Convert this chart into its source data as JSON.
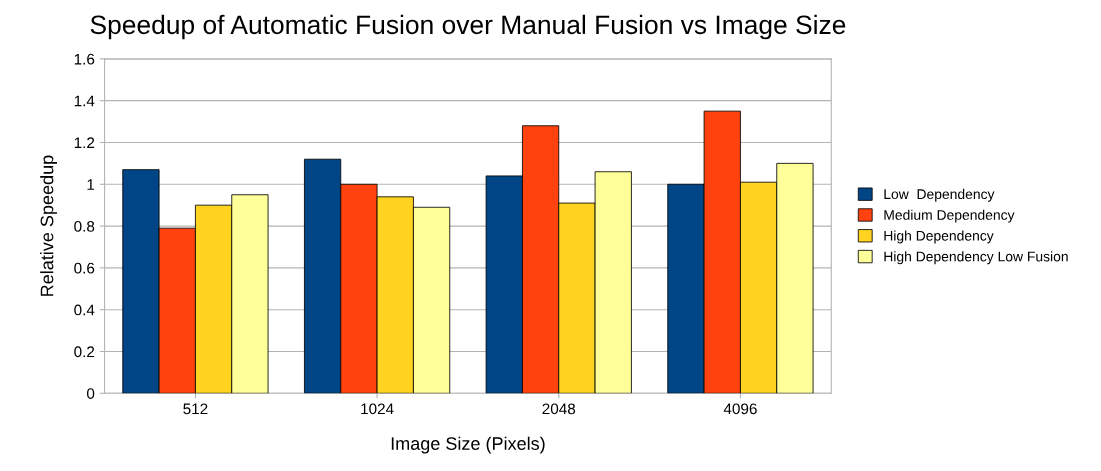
{
  "chart_data": {
    "type": "bar",
    "title": "Speedup of Automatic Fusion over Manual Fusion vs Image Size",
    "xlabel": "Image Size (Pixels)",
    "ylabel": "Relative Speedup",
    "categories": [
      "512",
      "1024",
      "2048",
      "4096"
    ],
    "series": [
      {
        "name": "Low  Dependency",
        "color": "#004586",
        "values": [
          1.07,
          1.12,
          1.04,
          1.0
        ]
      },
      {
        "name": "Medium Dependency",
        "color": "#ff420e",
        "values": [
          0.79,
          1.0,
          1.28,
          1.35
        ]
      },
      {
        "name": "High Dependency",
        "color": "#ffd320",
        "values": [
          0.9,
          0.94,
          0.91,
          1.01
        ]
      },
      {
        "name": "High Dependency Low Fusion",
        "color": "#ffff99",
        "values": [
          0.95,
          0.89,
          1.06,
          1.1
        ]
      }
    ],
    "ylim": [
      0,
      1.6
    ],
    "yticks": [
      0,
      0.2,
      0.4,
      0.6,
      0.8,
      1,
      1.2,
      1.4,
      1.6
    ],
    "grid": "y",
    "legend": "right"
  }
}
